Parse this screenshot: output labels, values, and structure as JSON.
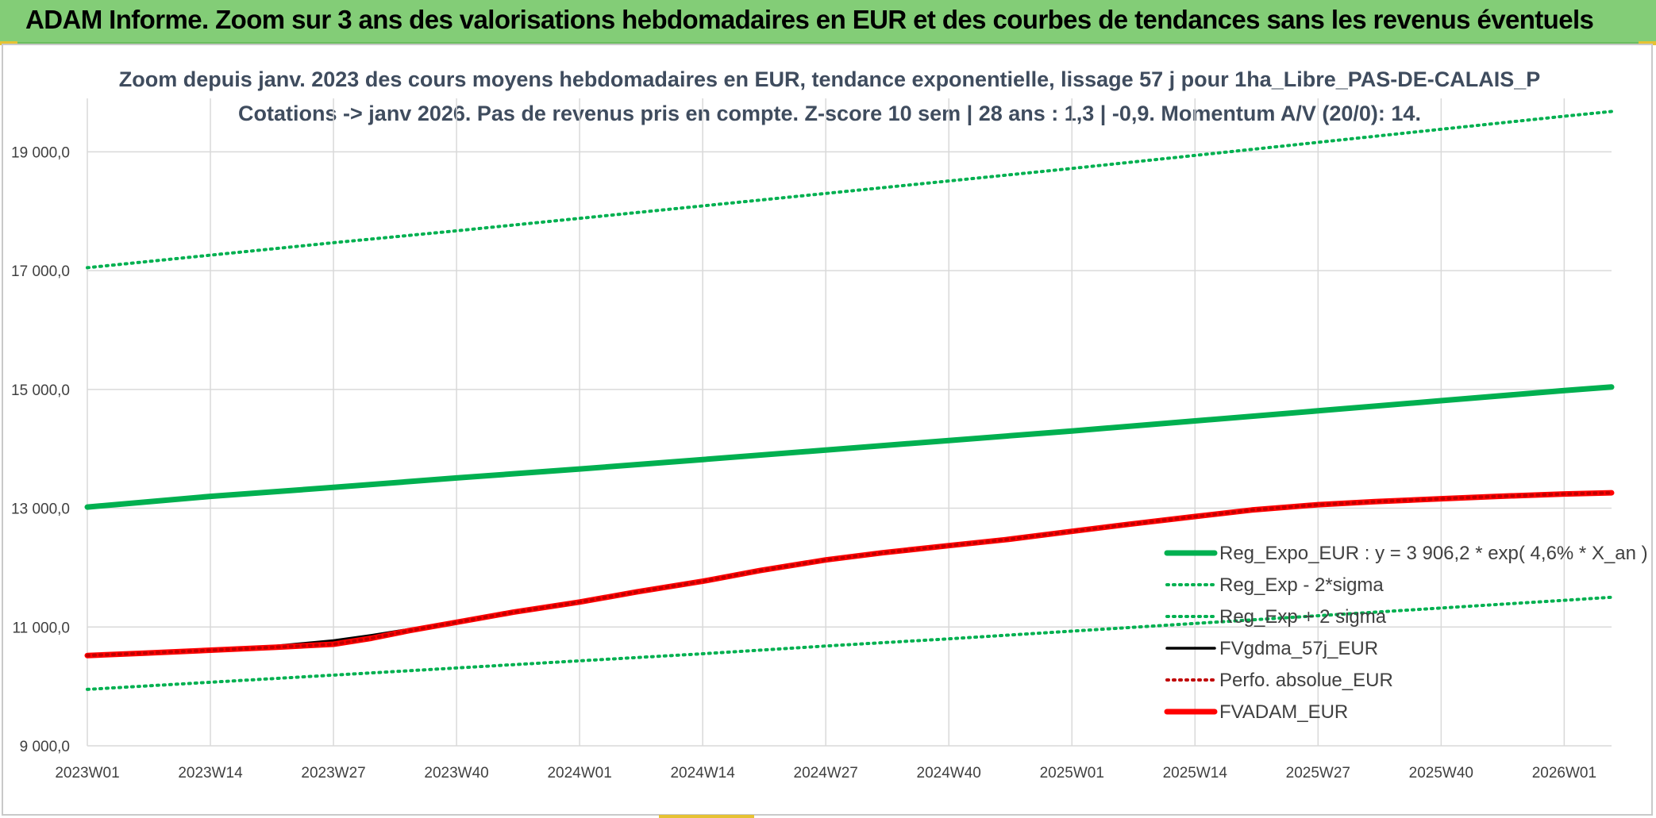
{
  "banner": {
    "title": "ADAM Informe. Zoom sur 3 ans des valorisations hebdomadaires en EUR et des courbes de tendances sans les revenus éventuels"
  },
  "chart_data": {
    "type": "line",
    "title": "Zoom depuis janv. 2023 des cours moyens hebdomadaires en EUR, tendance exponentielle, lissage 57 j pour 1ha_Libre_PAS-DE-CALAIS_P",
    "subtitle": "Cotations -> janv 2026. Pas de revenus pris en compte. Z-score 10 sem | 28 ans : 1,3 | -0,9. Momentum A/V (20/0): 14.",
    "xlabel": "",
    "ylabel": "",
    "x_tick_labels": [
      "2023W01",
      "2023W14",
      "2023W27",
      "2023W40",
      "2024W01",
      "2024W14",
      "2024W27",
      "2024W40",
      "2025W01",
      "2025W14",
      "2025W27",
      "2025W40",
      "2026W01"
    ],
    "x_range_weeks": [
      0,
      161
    ],
    "ylim": [
      9000,
      19900
    ],
    "y_ticks": [
      9000,
      11000,
      13000,
      15000,
      17000,
      19000
    ],
    "y_tick_labels": [
      "9 000,0",
      "11 000,0",
      "13 000,0",
      "15 000,0",
      "17 000,0",
      "19 000,0"
    ],
    "grid": true,
    "legend_position": "right, lower-middle",
    "series": [
      {
        "name": "Reg_Expo_EUR : y = 3 906,2 * exp( 4,6% *  X_an )",
        "color": "#00b050",
        "style": "solid-thick",
        "x": [
          0,
          13,
          26,
          39,
          52,
          65,
          78,
          91,
          104,
          117,
          130,
          143,
          156,
          161
        ],
        "values": [
          13020,
          13200,
          13350,
          13510,
          13660,
          13820,
          13980,
          14140,
          14300,
          14470,
          14640,
          14810,
          14980,
          15040
        ]
      },
      {
        "name": "Reg_Exp - 2*sigma",
        "color": "#00b050",
        "style": "dotted",
        "x": [
          0,
          13,
          26,
          39,
          52,
          65,
          78,
          91,
          104,
          117,
          130,
          143,
          156,
          161
        ],
        "values": [
          9950,
          10070,
          10190,
          10310,
          10430,
          10550,
          10680,
          10800,
          10930,
          11060,
          11190,
          11320,
          11450,
          11500
        ]
      },
      {
        "name": "Reg_Exp + 2 sigma",
        "color": "#00b050",
        "style": "dotted",
        "x": [
          0,
          13,
          26,
          39,
          52,
          65,
          78,
          91,
          104,
          117,
          130,
          143,
          156,
          161
        ],
        "values": [
          17050,
          17260,
          17470,
          17670,
          17880,
          18090,
          18300,
          18510,
          18720,
          18940,
          19160,
          19380,
          19600,
          19680
        ]
      },
      {
        "name": "FVgdma_57j_EUR",
        "color": "#000000",
        "style": "solid",
        "x": [
          0,
          6,
          13,
          20,
          26,
          30,
          34,
          39,
          45,
          52,
          58,
          65,
          71,
          78,
          84,
          91,
          97,
          104,
          110,
          117,
          123,
          130,
          136,
          143,
          149,
          156,
          161
        ],
        "values": [
          10520,
          10560,
          10620,
          10680,
          10770,
          10860,
          10960,
          11090,
          11250,
          11420,
          11580,
          11760,
          11940,
          12120,
          12240,
          12360,
          12460,
          12600,
          12720,
          12840,
          12960,
          13050,
          13100,
          13150,
          13190,
          13230,
          13250
        ]
      },
      {
        "name": "Perfo. absolue_EUR",
        "color": "#c00000",
        "style": "dotted",
        "x": [
          0,
          6,
          13,
          20,
          26,
          30,
          34,
          39,
          45,
          52,
          58,
          65,
          71,
          78,
          84,
          91,
          97,
          104,
          110,
          117,
          123,
          130,
          136,
          143,
          149,
          156,
          161
        ],
        "values": [
          10520,
          10560,
          10610,
          10660,
          10710,
          10810,
          10940,
          11080,
          11250,
          11420,
          11590,
          11770,
          11950,
          12130,
          12250,
          12370,
          12470,
          12610,
          12730,
          12860,
          12970,
          13060,
          13110,
          13160,
          13200,
          13240,
          13260
        ]
      },
      {
        "name": "FVADAM_EUR",
        "color": "#ff0000",
        "style": "solid-thick",
        "x": [
          0,
          6,
          13,
          20,
          26,
          30,
          34,
          39,
          45,
          52,
          58,
          65,
          71,
          78,
          84,
          91,
          97,
          104,
          110,
          117,
          123,
          130,
          136,
          143,
          149,
          156,
          161
        ],
        "values": [
          10520,
          10560,
          10610,
          10660,
          10710,
          10810,
          10940,
          11080,
          11250,
          11420,
          11590,
          11770,
          11950,
          12130,
          12250,
          12370,
          12470,
          12610,
          12730,
          12860,
          12970,
          13060,
          13110,
          13160,
          13200,
          13240,
          13260
        ]
      }
    ]
  }
}
